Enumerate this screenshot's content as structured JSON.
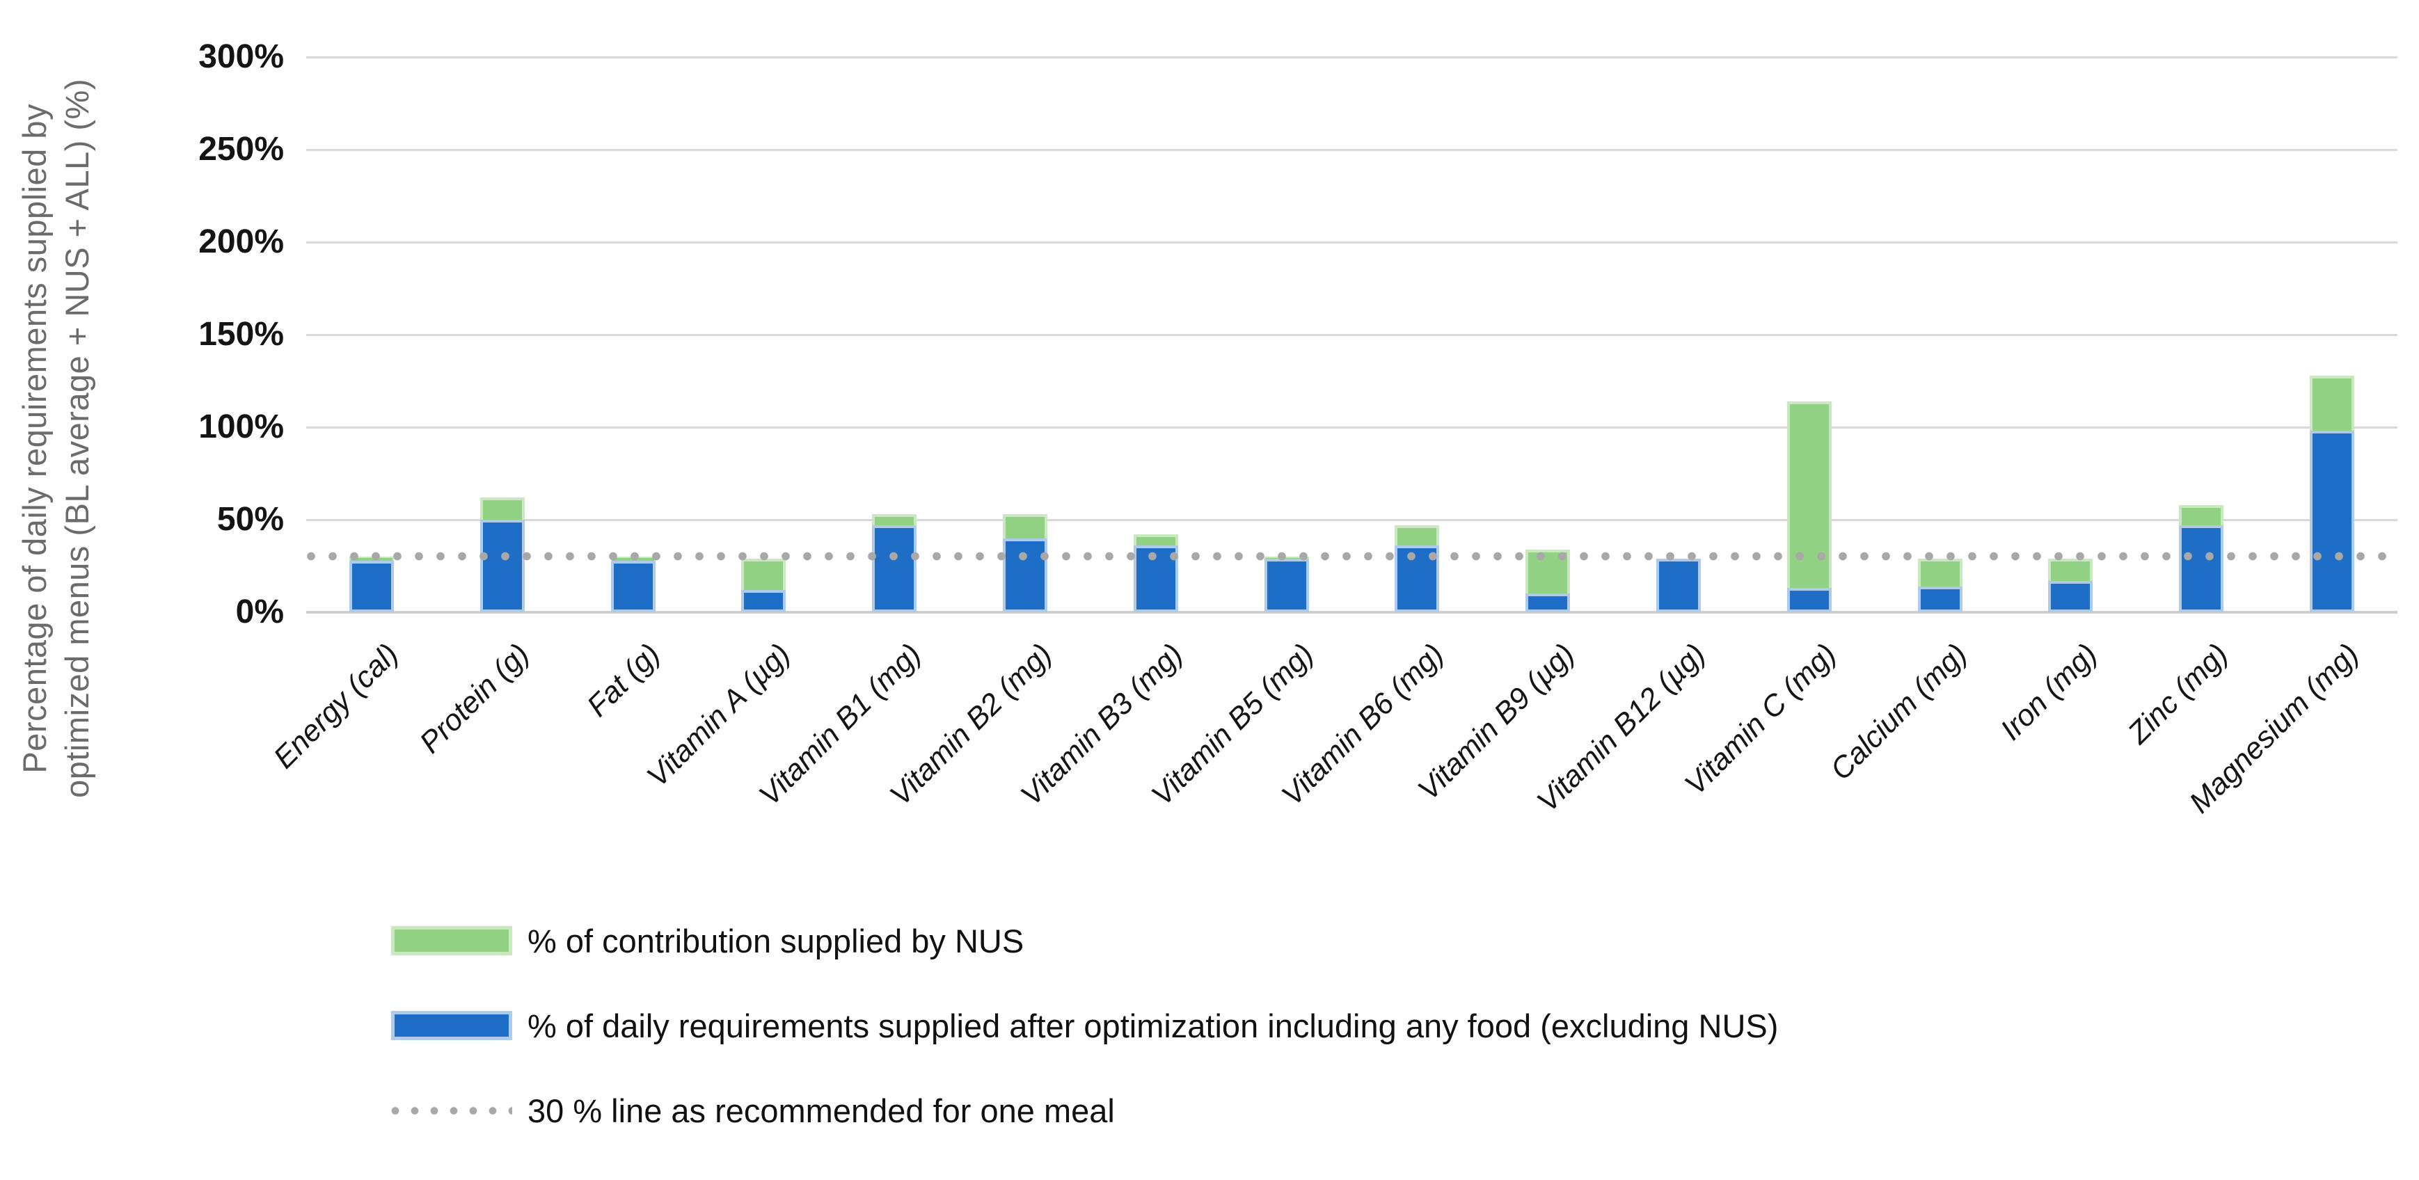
{
  "y_axis": {
    "title_line1": "Percentage of daily requirements supplied by",
    "title_line2": "optimized menus (BL average + NUS + ALL) (%)",
    "ticks": [
      "300%",
      "250%",
      "200%",
      "150%",
      "100%",
      "50%",
      "0%"
    ],
    "max": 300,
    "step": 50
  },
  "chart_data": {
    "type": "bar",
    "stacked": true,
    "grid": true,
    "ylim": [
      0,
      300
    ],
    "categories": [
      "Energy (cal)",
      "Protein (g)",
      "Fat (g)",
      "Vitamin A (µg)",
      "Vitamin B1 (mg)",
      "Vitamin B2 (mg)",
      "Vitamin B3 (mg)",
      "Vitamin B5 (mg)",
      "Vitamin B6 (mg)",
      "Vitamin B9 (µg)",
      "Vitamin B12 (µg)",
      "Vitamin C (mg)",
      "Calcium (mg)",
      "Iron (mg)",
      "Zinc (mg)",
      "Magnesium (mg)"
    ],
    "series": [
      {
        "name": "% of daily requirements supplied after optimization including any food (excluding NUS)",
        "color": "#1e6ec8",
        "border_color": "#aecbec",
        "values": [
          28,
          50,
          28,
          12,
          47,
          40,
          36,
          29,
          36,
          10,
          29,
          13,
          14,
          17,
          47,
          98
        ]
      },
      {
        "name": "% of contribution supplied by NUS",
        "color": "#90d183",
        "border_color": "#c9e8c0",
        "values": [
          2,
          12,
          2,
          17,
          6,
          13,
          6,
          1,
          11,
          24,
          0,
          101,
          15,
          12,
          11,
          30
        ]
      }
    ],
    "reference_line": {
      "value": 30,
      "label": "30 % line as recommended for one meal",
      "color": "#a8a8a8",
      "style": "dotted"
    },
    "gridline_color": "#d9d9d9"
  },
  "legend": {
    "order": [
      "nus",
      "optimized",
      "refline"
    ]
  }
}
